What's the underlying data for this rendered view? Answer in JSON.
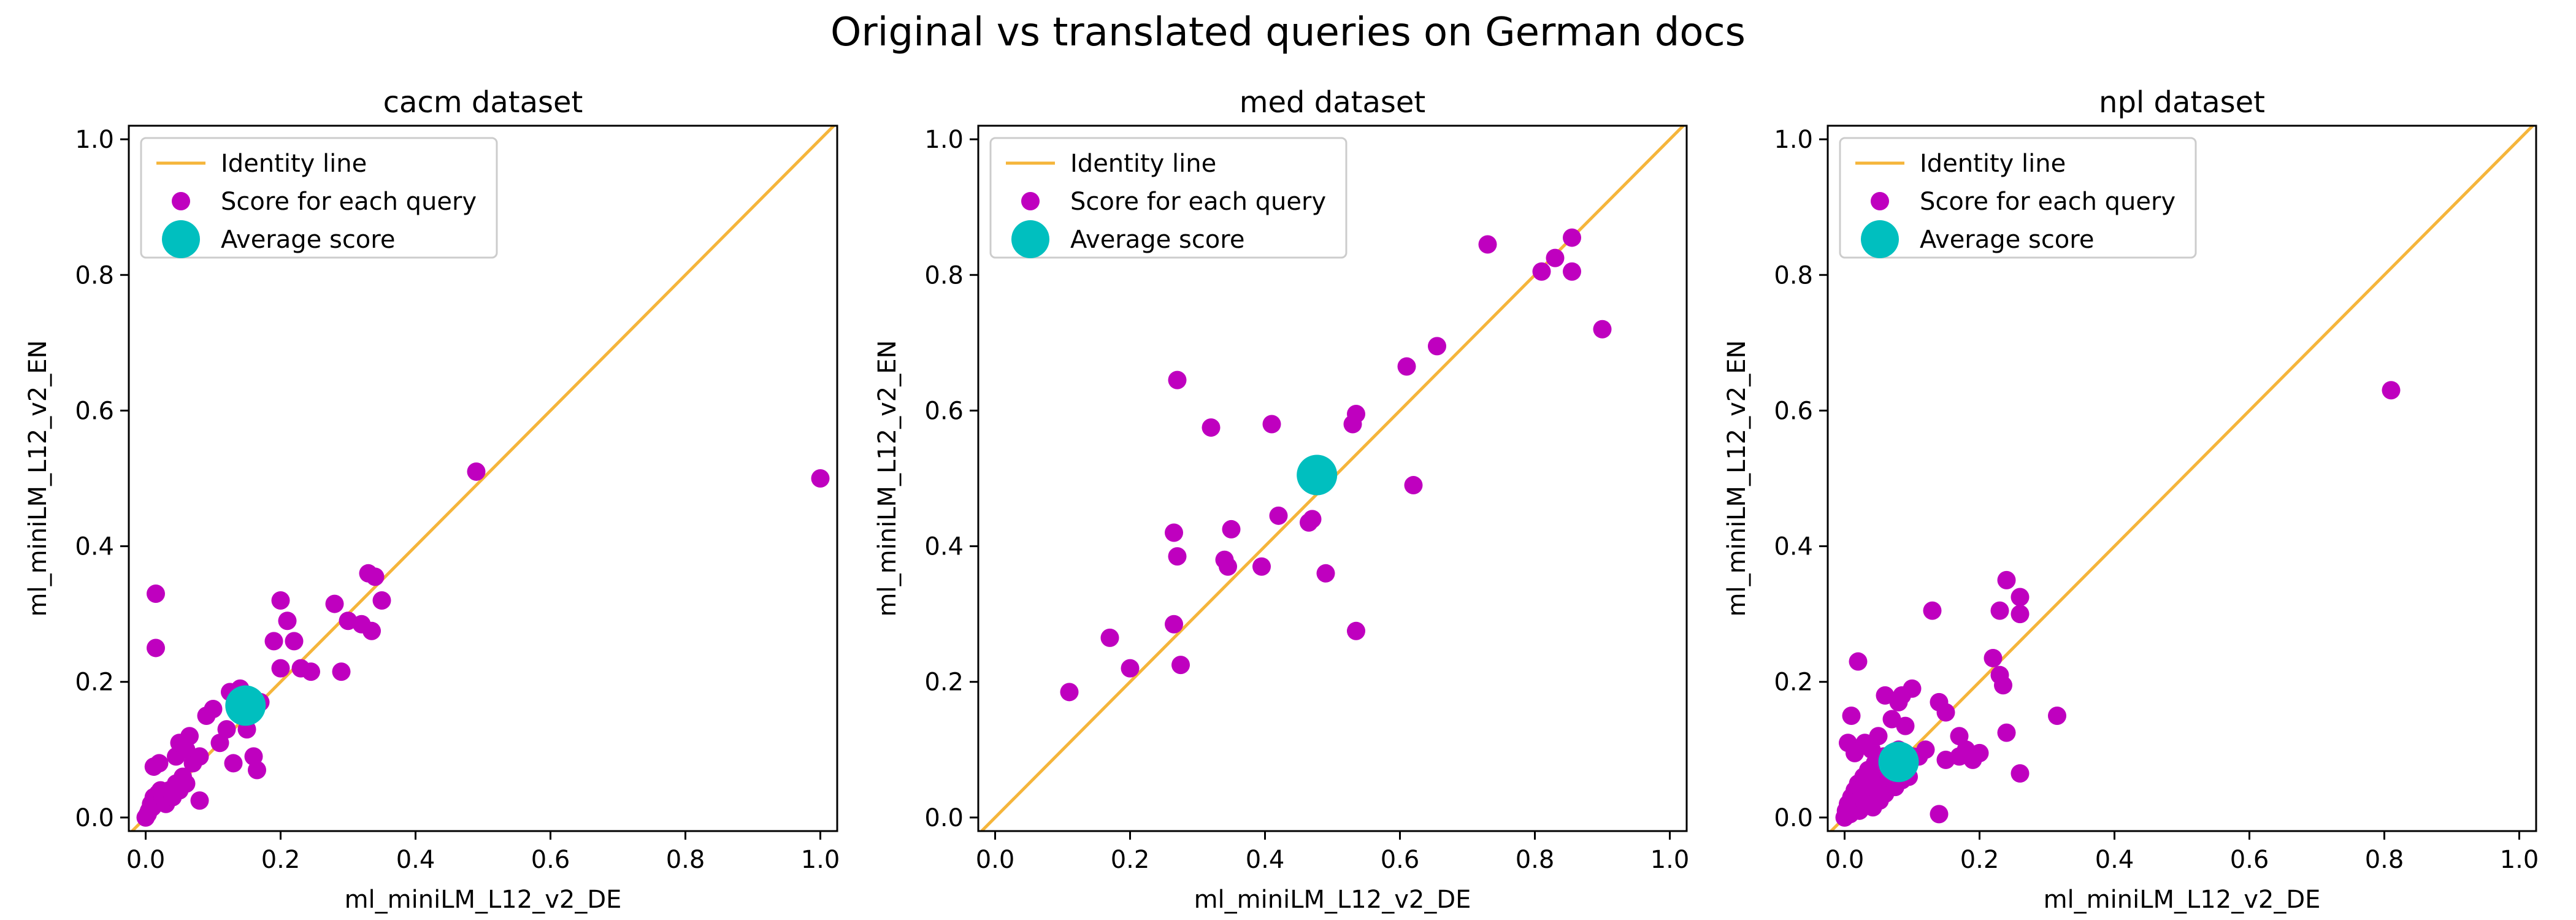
{
  "suptitle": "Original vs translated queries on German docs",
  "colors": {
    "identity": "#f5b53b",
    "points": "#bf00bf",
    "average": "#00bfbf"
  },
  "chart_data": [
    {
      "type": "scatter",
      "title": "cacm dataset",
      "xlabel": "ml_miniLM_L12_v2_DE",
      "ylabel": "ml_miniLM_L12_v2_EN",
      "xlim": [
        -0.025,
        1.025
      ],
      "ylim": [
        -0.02,
        1.02
      ],
      "xticks": [
        0.0,
        0.2,
        0.4,
        0.6,
        0.8,
        1.0
      ],
      "yticks": [
        0.0,
        0.2,
        0.4,
        0.6,
        0.8,
        1.0
      ],
      "tick_labels": [
        "0.0",
        "0.2",
        "0.4",
        "0.6",
        "0.8",
        "1.0"
      ],
      "legend": {
        "position": "top-left",
        "entries": [
          "Identity line",
          "Score for each query",
          "Average score"
        ]
      },
      "identity_line": [
        [
          -0.025,
          -0.025
        ],
        [
          1.025,
          1.025
        ]
      ],
      "points": [
        [
          0.0,
          0.0
        ],
        [
          0.003,
          0.005
        ],
        [
          0.005,
          0.01
        ],
        [
          0.008,
          0.02
        ],
        [
          0.01,
          0.015
        ],
        [
          0.012,
          0.03
        ],
        [
          0.015,
          0.02
        ],
        [
          0.018,
          0.035
        ],
        [
          0.02,
          0.025
        ],
        [
          0.022,
          0.04
        ],
        [
          0.025,
          0.03
        ],
        [
          0.03,
          0.02
        ],
        [
          0.035,
          0.04
        ],
        [
          0.04,
          0.03
        ],
        [
          0.045,
          0.05
        ],
        [
          0.05,
          0.04
        ],
        [
          0.055,
          0.06
        ],
        [
          0.06,
          0.05
        ],
        [
          0.012,
          0.075
        ],
        [
          0.02,
          0.08
        ],
        [
          0.045,
          0.09
        ],
        [
          0.05,
          0.11
        ],
        [
          0.06,
          0.1
        ],
        [
          0.065,
          0.12
        ],
        [
          0.07,
          0.08
        ],
        [
          0.08,
          0.09
        ],
        [
          0.08,
          0.025
        ],
        [
          0.09,
          0.15
        ],
        [
          0.1,
          0.16
        ],
        [
          0.11,
          0.11
        ],
        [
          0.12,
          0.13
        ],
        [
          0.125,
          0.185
        ],
        [
          0.13,
          0.08
        ],
        [
          0.14,
          0.19
        ],
        [
          0.15,
          0.13
        ],
        [
          0.16,
          0.09
        ],
        [
          0.165,
          0.07
        ],
        [
          0.17,
          0.17
        ],
        [
          0.19,
          0.26
        ],
        [
          0.2,
          0.32
        ],
        [
          0.2,
          0.22
        ],
        [
          0.21,
          0.29
        ],
        [
          0.22,
          0.26
        ],
        [
          0.23,
          0.22
        ],
        [
          0.245,
          0.215
        ],
        [
          0.28,
          0.315
        ],
        [
          0.29,
          0.215
        ],
        [
          0.3,
          0.29
        ],
        [
          0.32,
          0.285
        ],
        [
          0.33,
          0.36
        ],
        [
          0.335,
          0.275
        ],
        [
          0.34,
          0.355
        ],
        [
          0.35,
          0.32
        ],
        [
          0.015,
          0.33
        ],
        [
          0.015,
          0.25
        ],
        [
          0.49,
          0.51
        ],
        [
          1.0,
          0.5
        ]
      ],
      "average": [
        0.148,
        0.165
      ]
    },
    {
      "type": "scatter",
      "title": "med dataset",
      "xlabel": "ml_miniLM_L12_v2_DE",
      "ylabel": "ml_miniLM_L12_v2_EN",
      "xlim": [
        -0.025,
        1.025
      ],
      "ylim": [
        -0.02,
        1.02
      ],
      "xticks": [
        0.0,
        0.2,
        0.4,
        0.6,
        0.8,
        1.0
      ],
      "yticks": [
        0.0,
        0.2,
        0.4,
        0.6,
        0.8,
        1.0
      ],
      "tick_labels": [
        "0.0",
        "0.2",
        "0.4",
        "0.6",
        "0.8",
        "1.0"
      ],
      "legend": {
        "position": "top-left",
        "entries": [
          "Identity line",
          "Score for each query",
          "Average score"
        ]
      },
      "identity_line": [
        [
          -0.025,
          -0.025
        ],
        [
          1.025,
          1.025
        ]
      ],
      "points": [
        [
          0.11,
          0.185
        ],
        [
          0.17,
          0.265
        ],
        [
          0.2,
          0.22
        ],
        [
          0.265,
          0.285
        ],
        [
          0.265,
          0.42
        ],
        [
          0.27,
          0.385
        ],
        [
          0.275,
          0.225
        ],
        [
          0.27,
          0.645
        ],
        [
          0.32,
          0.575
        ],
        [
          0.34,
          0.38
        ],
        [
          0.345,
          0.37
        ],
        [
          0.35,
          0.425
        ],
        [
          0.395,
          0.37
        ],
        [
          0.41,
          0.58
        ],
        [
          0.42,
          0.445
        ],
        [
          0.465,
          0.435
        ],
        [
          0.47,
          0.44
        ],
        [
          0.49,
          0.36
        ],
        [
          0.53,
          0.58
        ],
        [
          0.535,
          0.595
        ],
        [
          0.535,
          0.275
        ],
        [
          0.61,
          0.665
        ],
        [
          0.62,
          0.49
        ],
        [
          0.655,
          0.695
        ],
        [
          0.73,
          0.845
        ],
        [
          0.81,
          0.805
        ],
        [
          0.83,
          0.825
        ],
        [
          0.855,
          0.855
        ],
        [
          0.855,
          0.805
        ],
        [
          0.9,
          0.72
        ]
      ],
      "average": [
        0.477,
        0.505
      ]
    },
    {
      "type": "scatter",
      "title": "npl dataset",
      "xlabel": "ml_miniLM_L12_v2_DE",
      "ylabel": "ml_miniLM_L12_v2_EN",
      "xlim": [
        -0.025,
        1.025
      ],
      "ylim": [
        -0.02,
        1.02
      ],
      "xticks": [
        0.0,
        0.2,
        0.4,
        0.6,
        0.8,
        1.0
      ],
      "yticks": [
        0.0,
        0.2,
        0.4,
        0.6,
        0.8,
        1.0
      ],
      "tick_labels": [
        "0.0",
        "0.2",
        "0.4",
        "0.6",
        "0.8",
        "1.0"
      ],
      "legend": {
        "position": "top-left",
        "entries": [
          "Identity line",
          "Score for each query",
          "Average score"
        ]
      },
      "identity_line": [
        [
          -0.025,
          -0.025
        ],
        [
          1.025,
          1.025
        ]
      ],
      "points": [
        [
          0.0,
          0.0
        ],
        [
          0.002,
          0.01
        ],
        [
          0.005,
          0.02
        ],
        [
          0.008,
          0.005
        ],
        [
          0.01,
          0.03
        ],
        [
          0.012,
          0.015
        ],
        [
          0.015,
          0.04
        ],
        [
          0.018,
          0.025
        ],
        [
          0.02,
          0.05
        ],
        [
          0.022,
          0.01
        ],
        [
          0.025,
          0.035
        ],
        [
          0.028,
          0.06
        ],
        [
          0.03,
          0.02
        ],
        [
          0.032,
          0.045
        ],
        [
          0.035,
          0.07
        ],
        [
          0.038,
          0.03
        ],
        [
          0.04,
          0.055
        ],
        [
          0.042,
          0.015
        ],
        [
          0.045,
          0.08
        ],
        [
          0.048,
          0.04
        ],
        [
          0.05,
          0.065
        ],
        [
          0.052,
          0.025
        ],
        [
          0.055,
          0.05
        ],
        [
          0.058,
          0.09
        ],
        [
          0.06,
          0.035
        ],
        [
          0.065,
          0.06
        ],
        [
          0.07,
          0.075
        ],
        [
          0.075,
          0.045
        ],
        [
          0.08,
          0.1
        ],
        [
          0.085,
          0.055
        ],
        [
          0.09,
          0.07
        ],
        [
          0.095,
          0.06
        ],
        [
          0.1,
          0.09
        ],
        [
          0.005,
          0.11
        ],
        [
          0.01,
          0.15
        ],
        [
          0.015,
          0.095
        ],
        [
          0.02,
          0.23
        ],
        [
          0.03,
          0.11
        ],
        [
          0.04,
          0.1
        ],
        [
          0.05,
          0.12
        ],
        [
          0.06,
          0.18
        ],
        [
          0.07,
          0.145
        ],
        [
          0.08,
          0.17
        ],
        [
          0.085,
          0.18
        ],
        [
          0.09,
          0.135
        ],
        [
          0.1,
          0.19
        ],
        [
          0.11,
          0.09
        ],
        [
          0.12,
          0.1
        ],
        [
          0.13,
          0.305
        ],
        [
          0.14,
          0.17
        ],
        [
          0.15,
          0.155
        ],
        [
          0.15,
          0.085
        ],
        [
          0.17,
          0.12
        ],
        [
          0.17,
          0.09
        ],
        [
          0.18,
          0.1
        ],
        [
          0.2,
          0.095
        ],
        [
          0.22,
          0.235
        ],
        [
          0.23,
          0.305
        ],
        [
          0.23,
          0.21
        ],
        [
          0.235,
          0.195
        ],
        [
          0.24,
          0.125
        ],
        [
          0.24,
          0.35
        ],
        [
          0.26,
          0.325
        ],
        [
          0.26,
          0.3
        ],
        [
          0.26,
          0.065
        ],
        [
          0.19,
          0.085
        ],
        [
          0.315,
          0.15
        ],
        [
          0.14,
          0.005
        ],
        [
          0.81,
          0.63
        ]
      ],
      "average": [
        0.08,
        0.082
      ]
    }
  ]
}
